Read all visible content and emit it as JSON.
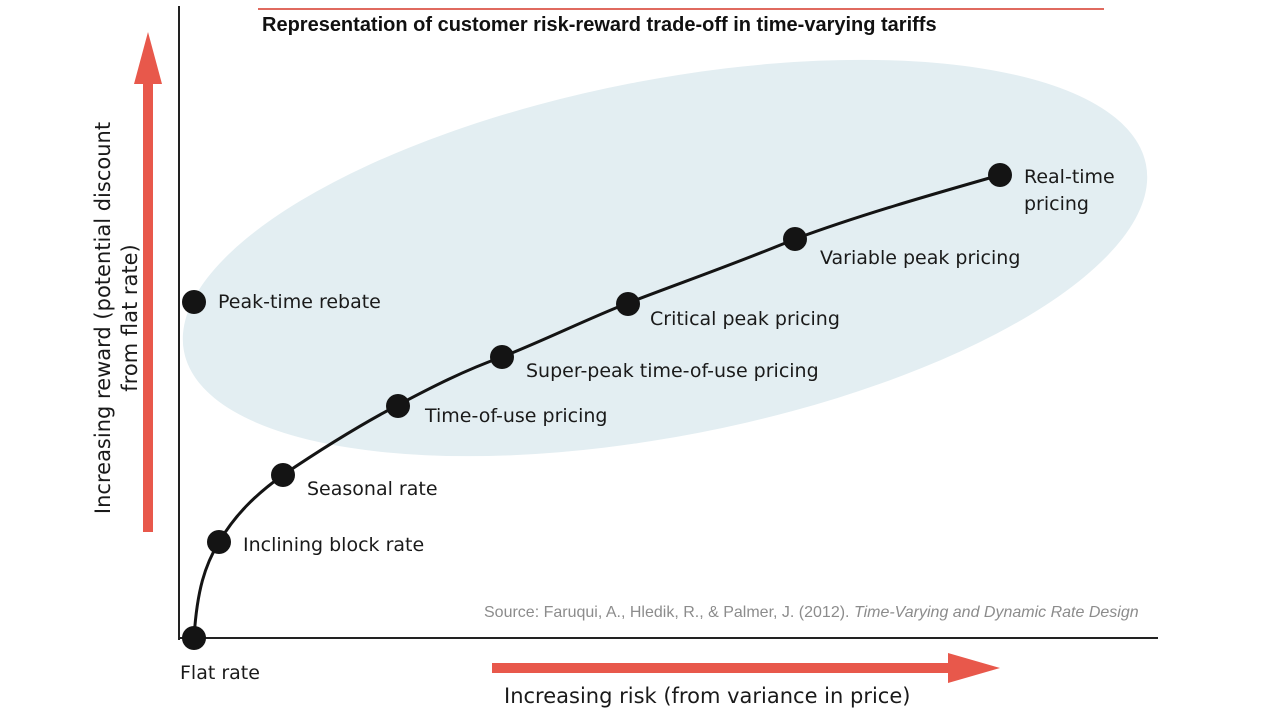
{
  "title": "Representation of customer risk-reward trade-off in time-varying tariffs",
  "y_axis_label": "Increasing reward (potential discount from flat rate)",
  "x_axis_label": "Increasing risk (from variance in price)",
  "source": {
    "prefix": "Source: Faruqui, A., Hledik, R., & Palmer, J. (2012).",
    "italic": "Time-Varying and Dynamic Rate Design"
  },
  "points": [
    {
      "label": "Flat rate"
    },
    {
      "label": "Inclining block rate"
    },
    {
      "label": "Seasonal rate"
    },
    {
      "label": "Time-of-use pricing"
    },
    {
      "label": "Super-peak time-of-use pricing"
    },
    {
      "label": "Critical peak pricing"
    },
    {
      "label": "Variable peak pricing"
    },
    {
      "label": "Real-time pricing"
    },
    {
      "label": "Peak-time rebate"
    }
  ],
  "colors": {
    "arrow": "#e8584b",
    "ellipse": "#e3eef2",
    "dot": "#141414",
    "axis": "#222222"
  }
}
